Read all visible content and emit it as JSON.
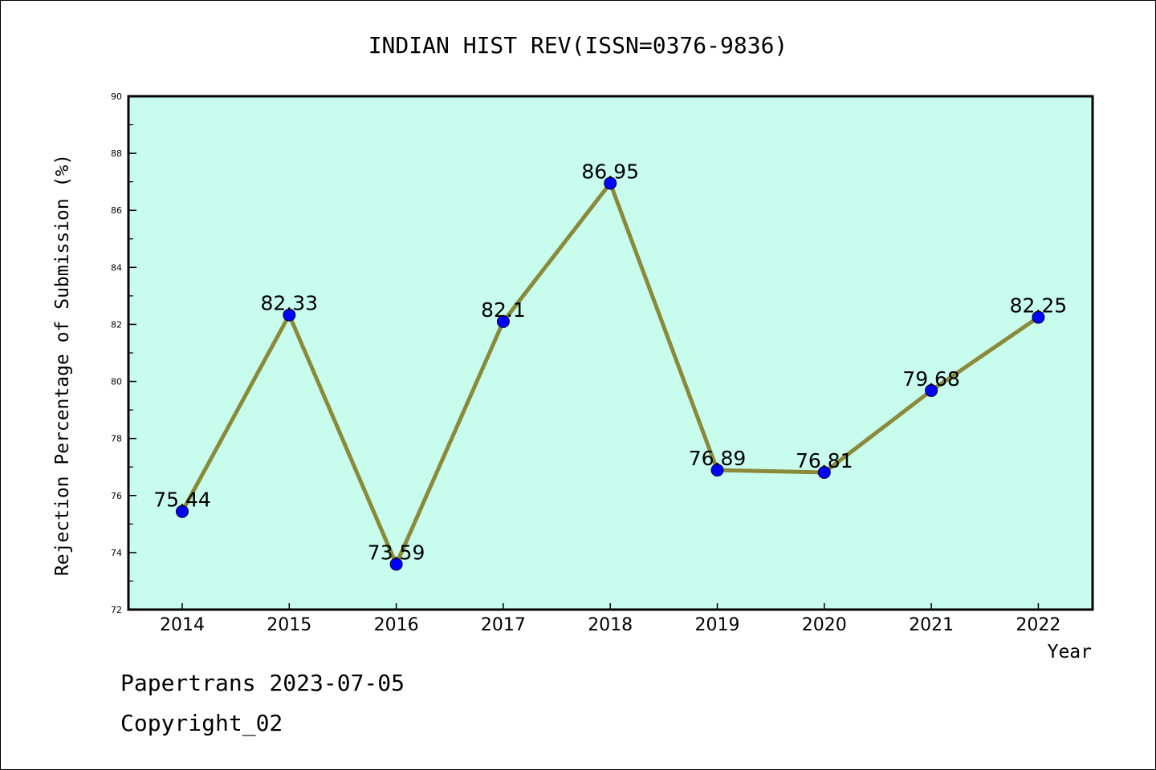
{
  "chart_data": {
    "type": "line",
    "title": "INDIAN HIST REV(ISSN=0376-9836)",
    "xlabel": "Year",
    "ylabel": "Rejection Percentage of Submission (%)",
    "categories": [
      "2014",
      "2015",
      "2016",
      "2017",
      "2018",
      "2019",
      "2020",
      "2021",
      "2022"
    ],
    "values": [
      75.44,
      82.33,
      73.59,
      82.1,
      86.95,
      76.89,
      76.81,
      79.68,
      82.25
    ],
    "data_labels": [
      "75.44",
      "82.33",
      "73.59",
      "82.1",
      "86.95",
      "76.89",
      "76.81",
      "79.68",
      "82.25"
    ],
    "ylim": [
      72,
      90
    ],
    "yticks": [
      "72",
      "74",
      "76",
      "78",
      "80",
      "82",
      "84",
      "86",
      "88",
      "90"
    ],
    "grid": false,
    "colors": {
      "plot_background": "#c8fdee",
      "line": "#8b8a3a",
      "marker": "#0000ff"
    }
  },
  "footer": {
    "line1": "Papertrans 2023-07-05",
    "line2": "Copyright_02"
  }
}
